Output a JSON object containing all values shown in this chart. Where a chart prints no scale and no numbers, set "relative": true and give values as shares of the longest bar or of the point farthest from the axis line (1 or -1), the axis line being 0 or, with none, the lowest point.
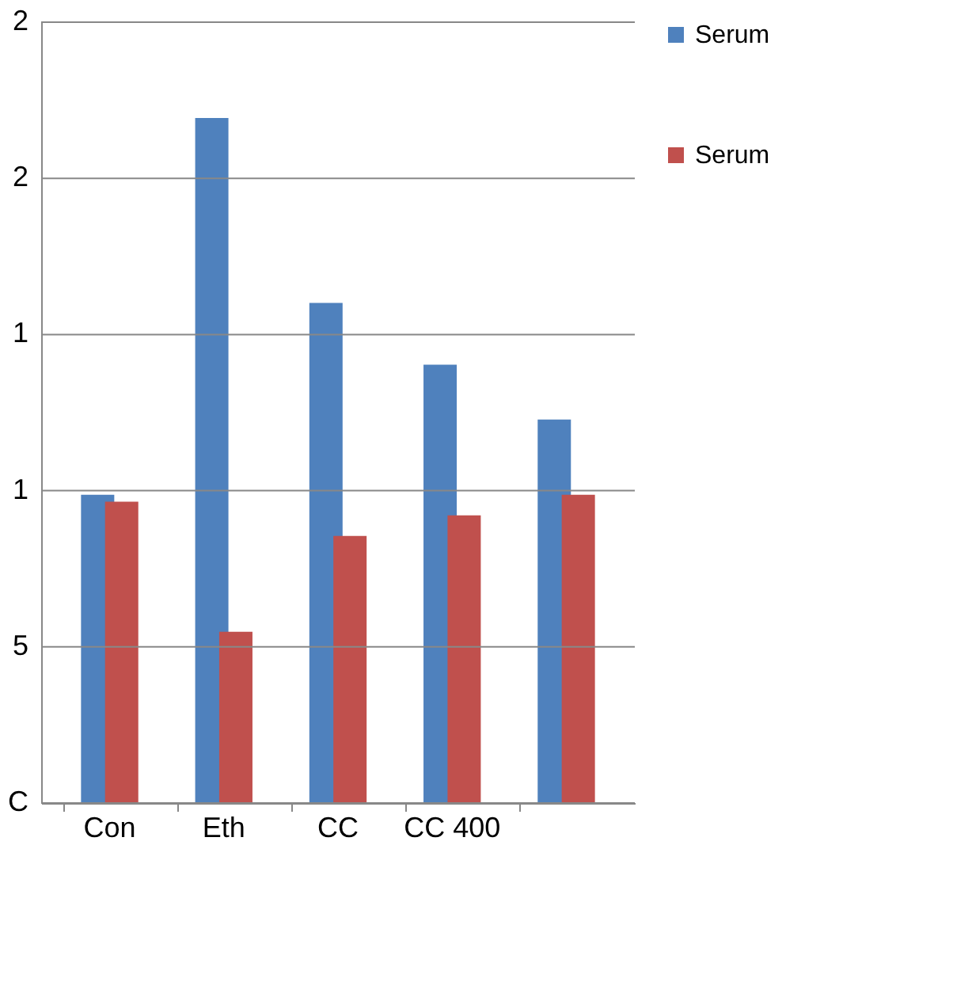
{
  "chart_data": {
    "type": "bar",
    "categories": [
      "Con",
      "Eth",
      "CC",
      "CC 400",
      null
    ],
    "series": [
      {
        "name": "Serum",
        "color": "#4f81bd",
        "values": [
          0.45,
          1,
          0.73,
          0.64,
          0.56
        ]
      },
      {
        "name": "Serum",
        "color": "#c0504d",
        "values": [
          0.44,
          0.25,
          0.39,
          0.42,
          0.45
        ]
      }
    ],
    "relative": true,
    "annotations": [
      "C",
      "5",
      "1",
      "1",
      "2",
      "2"
    ],
    "grid": "y",
    "legend": "right"
  }
}
